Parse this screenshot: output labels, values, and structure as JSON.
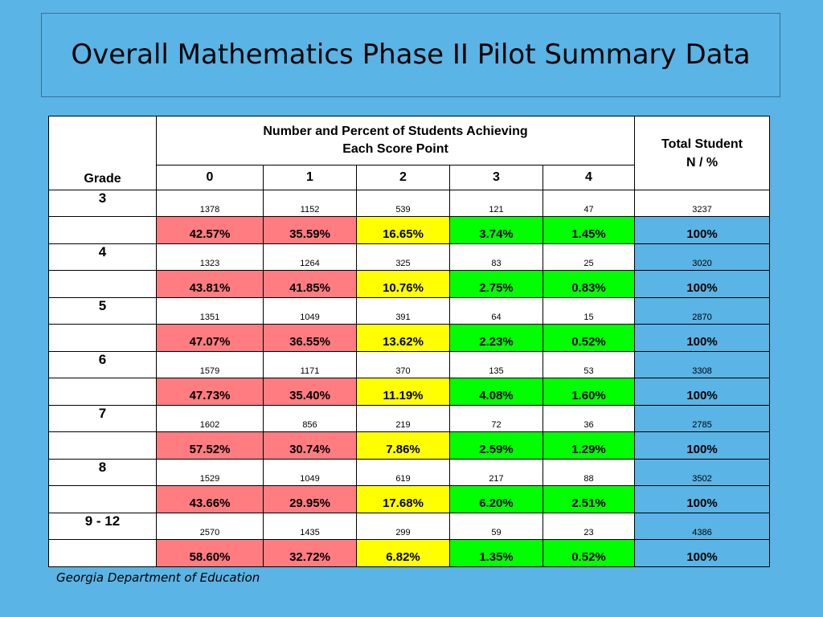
{
  "title": "Overall Mathematics Phase II Pilot Summary Data",
  "header": {
    "grade": "Grade",
    "group_line1": "Number and Percent of Students Achieving",
    "group_line2": "Each Score Point",
    "total_line1": "Total Student",
    "total_line2": "N / %",
    "score_points": [
      "0",
      "1",
      "2",
      "3",
      "4"
    ]
  },
  "rows": [
    {
      "grade": "3",
      "counts": [
        "1378",
        "1152",
        "539",
        "121",
        "47"
      ],
      "total": "3237",
      "pcts": [
        "42.57%",
        "35.59%",
        "16.65%",
        "3.74%",
        "1.45%"
      ],
      "total_pct": "100%"
    },
    {
      "grade": "4",
      "counts": [
        "1323",
        "1264",
        "325",
        "83",
        "25"
      ],
      "total": "3020",
      "pcts": [
        "43.81%",
        "41.85%",
        "10.76%",
        "2.75%",
        "0.83%"
      ],
      "total_pct": "100%"
    },
    {
      "grade": "5",
      "counts": [
        "1351",
        "1049",
        "391",
        "64",
        "15"
      ],
      "total": "2870",
      "pcts": [
        "47.07%",
        "36.55%",
        "13.62%",
        "2.23%",
        "0.52%"
      ],
      "total_pct": "100%"
    },
    {
      "grade": "6",
      "counts": [
        "1579",
        "1171",
        "370",
        "135",
        "53"
      ],
      "total": "3308",
      "pcts": [
        "47.73%",
        "35.40%",
        "11.19%",
        "4.08%",
        "1.60%"
      ],
      "total_pct": "100%"
    },
    {
      "grade": "7",
      "counts": [
        "1602",
        "856",
        "219",
        "72",
        "36"
      ],
      "total": "2785",
      "pcts": [
        "57.52%",
        "30.74%",
        "7.86%",
        "2.59%",
        "1.29%"
      ],
      "total_pct": "100%"
    },
    {
      "grade": "8",
      "counts": [
        "1529",
        "1049",
        "619",
        "217",
        "88"
      ],
      "total": "3502",
      "pcts": [
        "43.66%",
        "29.95%",
        "17.68%",
        "6.20%",
        "2.51%"
      ],
      "total_pct": "100%"
    },
    {
      "grade": "9 - 12",
      "counts": [
        "2570",
        "1435",
        "299",
        "59",
        "23"
      ],
      "total": "4386",
      "pcts": [
        "58.60%",
        "32.72%",
        "6.82%",
        "1.35%",
        "0.52%"
      ],
      "total_pct": "100%"
    }
  ],
  "colors": {
    "background": "#5ab4e5",
    "score_0": "#ff7c80",
    "score_1": "#ff7c80",
    "score_2": "#ffff00",
    "score_3": "#00ff00",
    "score_4": "#00ff00",
    "total": "#5ab4e5"
  },
  "footer": "Georgia Department of Education"
}
